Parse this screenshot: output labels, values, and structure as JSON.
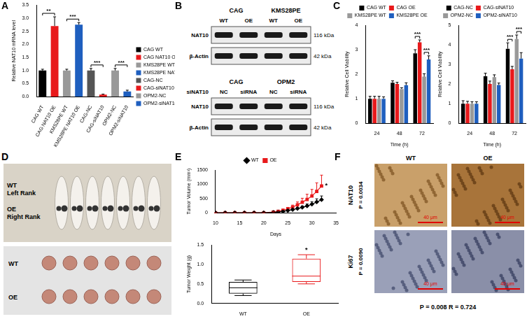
{
  "chart_data": [
    {
      "panel": "A",
      "type": "bar",
      "y_label": "Relative NAT10 mRNA level",
      "categories": [
        "CAG WT",
        "CAG NAT10 OE",
        "KMS28PE WT",
        "KMS28PE NAT10 OE",
        "CAG-NC",
        "CAG-siNAT10",
        "OPM2-NC",
        "OPM2-siNAT10"
      ],
      "values": [
        1.0,
        2.7,
        1.0,
        2.75,
        1.0,
        0.08,
        1.0,
        0.2
      ],
      "errors": [
        0.05,
        0.35,
        0.05,
        0.08,
        0.08,
        0.02,
        0.08,
        0.05
      ],
      "colors": [
        "#000000",
        "#e8191b",
        "#999999",
        "#1f5fbf",
        "#555555",
        "#e8191b",
        "#999999",
        "#1f5fbf"
      ],
      "ylim": [
        0,
        3.5
      ],
      "yticks": [
        {
          "value": 0,
          "label": "0.0"
        },
        {
          "value": 0.5,
          "label": "0.5"
        },
        {
          "value": 1,
          "label": "1.0"
        },
        {
          "value": 1.5,
          "label": "1.5"
        },
        {
          "value": 2,
          "label": "2.0"
        },
        {
          "value": 2.5,
          "label": "2.5"
        },
        {
          "value": 3,
          "label": "3.0"
        },
        {
          "value": 3.5,
          "label": "3.5"
        }
      ],
      "grid": false,
      "legend": "right",
      "annotations": [
        {
          "text": "**",
          "categories": [
            "CAG WT",
            "CAG NAT10 OE"
          ]
        },
        {
          "text": "***",
          "categories": [
            "KMS28PE WT",
            "KMS28PE NAT10 OE"
          ]
        },
        {
          "text": "***",
          "categories": [
            "CAG-NC",
            "CAG-siNAT10"
          ]
        },
        {
          "text": "***",
          "categories": [
            "OPM2-NC",
            "OPM2-siNAT10"
          ]
        }
      ]
    },
    {
      "panel": "C",
      "type": "bar",
      "x_label": "Time (h)",
      "y_label": "Relative Cell Viability",
      "categories": [
        "24",
        "48",
        "72"
      ],
      "series": [
        {
          "name": "CAG WT",
          "color": "#000000",
          "values": [
            1.0,
            1.65,
            2.85
          ],
          "errors": [
            0.1,
            0.08,
            0.15
          ]
        },
        {
          "name": "CAG OE",
          "color": "#e8191b",
          "values": [
            1.0,
            1.6,
            3.3
          ],
          "errors": [
            0.1,
            0.07,
            0.1
          ]
        },
        {
          "name": "KMS28PE WT",
          "color": "#999999",
          "values": [
            1.0,
            1.4,
            1.9
          ],
          "errors": [
            0.1,
            0.05,
            0.12
          ]
        },
        {
          "name": "KMS28PE OE",
          "color": "#1f5fbf",
          "values": [
            1.0,
            1.55,
            2.6
          ],
          "errors": [
            0.08,
            0.1,
            0.15
          ]
        }
      ],
      "ylim": [
        0,
        4
      ],
      "yticks": [
        0,
        1,
        2,
        3,
        4
      ],
      "grid": false,
      "legend": "top",
      "annotations": [
        {
          "text": "***",
          "category": "72",
          "series": [
            "CAG WT",
            "CAG OE"
          ]
        },
        {
          "text": "***",
          "category": "72",
          "series": [
            "KMS28PE WT",
            "KMS28PE OE"
          ]
        }
      ]
    },
    {
      "type": "bar",
      "x_label": "Time (h)",
      "y_label": "Relative Cell Viability",
      "categories": [
        "24",
        "48",
        "72"
      ],
      "series": [
        {
          "name": "CAG-NC",
          "color": "#000000",
          "values": [
            1.0,
            2.4,
            3.8
          ],
          "errors": [
            0.15,
            0.15,
            0.3
          ]
        },
        {
          "name": "CAG-siNAT10",
          "color": "#e8191b",
          "values": [
            1.0,
            2.0,
            2.75
          ],
          "errors": [
            0.12,
            0.15,
            0.15
          ]
        },
        {
          "name": "OPM2-NC",
          "color": "#999999",
          "values": [
            1.0,
            2.35,
            4.3
          ],
          "errors": [
            0.1,
            0.12,
            0.2
          ]
        },
        {
          "name": "OPM2-siNAT10",
          "color": "#1f5fbf",
          "values": [
            1.0,
            1.95,
            3.3
          ],
          "errors": [
            0.1,
            0.1,
            0.3
          ]
        }
      ],
      "ylim": [
        0,
        5
      ],
      "yticks": [
        0,
        1,
        2,
        3,
        4,
        5
      ],
      "grid": false,
      "legend": "top",
      "annotations": [
        {
          "text": "***",
          "category": "72",
          "series": [
            "CAG-NC",
            "CAG-siNAT10"
          ]
        },
        {
          "text": "***",
          "category": "72",
          "series": [
            "OPM2-NC",
            "OPM2-siNAT10"
          ]
        }
      ]
    },
    {
      "panel": "E",
      "type": "line",
      "x_label": "Days",
      "y_label": "Tumor Volume (mm³)",
      "x": [
        10,
        12,
        14,
        16,
        18,
        20,
        22,
        23,
        24,
        25,
        26,
        27,
        28,
        29,
        30,
        31,
        32
      ],
      "series": [
        {
          "name": "WT",
          "color": "#000000",
          "marker": "diamond",
          "values": [
            0,
            0,
            0,
            0,
            0,
            0,
            15,
            30,
            50,
            80,
            110,
            150,
            190,
            240,
            300,
            380,
            460
          ],
          "errors": [
            0,
            0,
            0,
            0,
            0,
            0,
            5,
            10,
            15,
            20,
            30,
            40,
            50,
            70,
            90,
            110,
            130
          ]
        },
        {
          "name": "OE",
          "color": "#e8191b",
          "marker": "square",
          "values": [
            0,
            0,
            0,
            0,
            0,
            0,
            25,
            50,
            90,
            140,
            200,
            280,
            370,
            470,
            590,
            750,
            940
          ],
          "errors": [
            0,
            0,
            0,
            0,
            0,
            0,
            10,
            20,
            30,
            50,
            70,
            100,
            140,
            180,
            230,
            300,
            380
          ]
        }
      ],
      "xlim": [
        10,
        35
      ],
      "xticks": [
        10,
        15,
        20,
        25,
        30,
        35
      ],
      "ylim": [
        0,
        1500
      ],
      "yticks": [
        0,
        500,
        1000,
        1500
      ],
      "grid": false,
      "legend": "top",
      "annotations": [
        {
          "text": "*",
          "series": "OE"
        }
      ]
    },
    {
      "type": "box",
      "y_label": "Tumor Weight (g)",
      "categories": [
        "WT",
        "OE"
      ],
      "stats": {
        "min": [
          0.2,
          0.5
        ],
        "q1": [
          0.25,
          0.55
        ],
        "median": [
          0.4,
          0.7
        ],
        "q3": [
          0.55,
          1.15
        ],
        "max": [
          0.6,
          1.25
        ]
      },
      "colors": [
        "#000000",
        "#e8191b"
      ],
      "ylim": [
        0,
        1.5
      ],
      "yticks": [
        {
          "value": 0,
          "label": "0.0"
        },
        {
          "value": 0.5,
          "label": "0.5"
        },
        {
          "value": 1,
          "label": "1.0"
        },
        {
          "value": 1.5,
          "label": "1.5"
        }
      ],
      "grid": false,
      "annotations": [
        {
          "text": "*",
          "category": "OE"
        }
      ]
    }
  ],
  "blots": {
    "panel": "B",
    "blocks": [
      {
        "cell_lines": [
          "CAG",
          "KMS28PE"
        ],
        "lanes": [
          "WT",
          "OE",
          "WT",
          "OE"
        ],
        "bands": [
          {
            "name": "NAT10",
            "size": "116 kDa"
          },
          {
            "name": "β-Actin",
            "size": "42 kDa"
          }
        ]
      },
      {
        "row_label": "siNAT10",
        "cell_lines": [
          "CAG",
          "OPM2"
        ],
        "lanes": [
          "NC",
          "siRNA",
          "NC",
          "siRNA"
        ],
        "bands": [
          {
            "name": "NAT10",
            "size": "116 kDa"
          },
          {
            "name": "β-Actin",
            "size": "42 kDa"
          }
        ]
      }
    ]
  },
  "photos": {
    "panel": "D",
    "mice_labels": [
      [
        "WT",
        "Left Rank"
      ],
      [
        "OE",
        "Right Rank"
      ]
    ],
    "tumor_labels": [
      "WT",
      "OE"
    ]
  },
  "ihc": {
    "panel": "F",
    "columns": [
      "WT",
      "OE"
    ],
    "rows": [
      {
        "stain": "NAT10",
        "p": "P = 0.0034"
      },
      {
        "stain": "Ki67",
        "p": "P = 0.0090"
      }
    ],
    "scale_bar": "40 μm",
    "footer": "P = 0.008 R = 0.724"
  }
}
